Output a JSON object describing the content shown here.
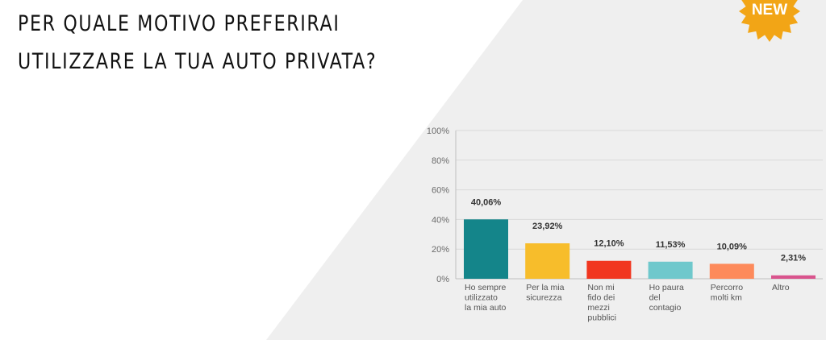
{
  "title": {
    "line1": "PER QUALE MOTIVO PREFERIRAI",
    "line2": "UTILIZZARE LA TUA AUTO PRIVATA?"
  },
  "badge": {
    "label": "NEW",
    "color": "#f2a516"
  },
  "colors": {
    "background_grey": "#efefef"
  },
  "chart_data": {
    "type": "bar",
    "categories": [
      [
        "Ho sempre",
        "utilizzato",
        "la mia auto"
      ],
      [
        "Per la mia",
        "sicurezza"
      ],
      [
        "Non mi",
        "fido dei",
        "mezzi",
        "pubblici"
      ],
      [
        "Ho paura",
        "del",
        "contagio"
      ],
      [
        "Percorro",
        "molti km"
      ],
      [
        "Altro"
      ]
    ],
    "values": [
      40.06,
      23.92,
      12.1,
      11.53,
      10.09,
      2.31
    ],
    "value_labels": [
      "40,06%",
      "23,92%",
      "12,10%",
      "11,53%",
      "10,09%",
      "2,31%"
    ],
    "colors": [
      "#14858a",
      "#f7bd2b",
      "#f1361f",
      "#6fc8cc",
      "#fd8a5b",
      "#d9548d"
    ],
    "ylim": [
      0,
      100
    ],
    "yticks": [
      "0%",
      "20%",
      "40%",
      "60%",
      "80%",
      "100%"
    ],
    "grid": true,
    "title": "",
    "xlabel": "",
    "ylabel": ""
  }
}
